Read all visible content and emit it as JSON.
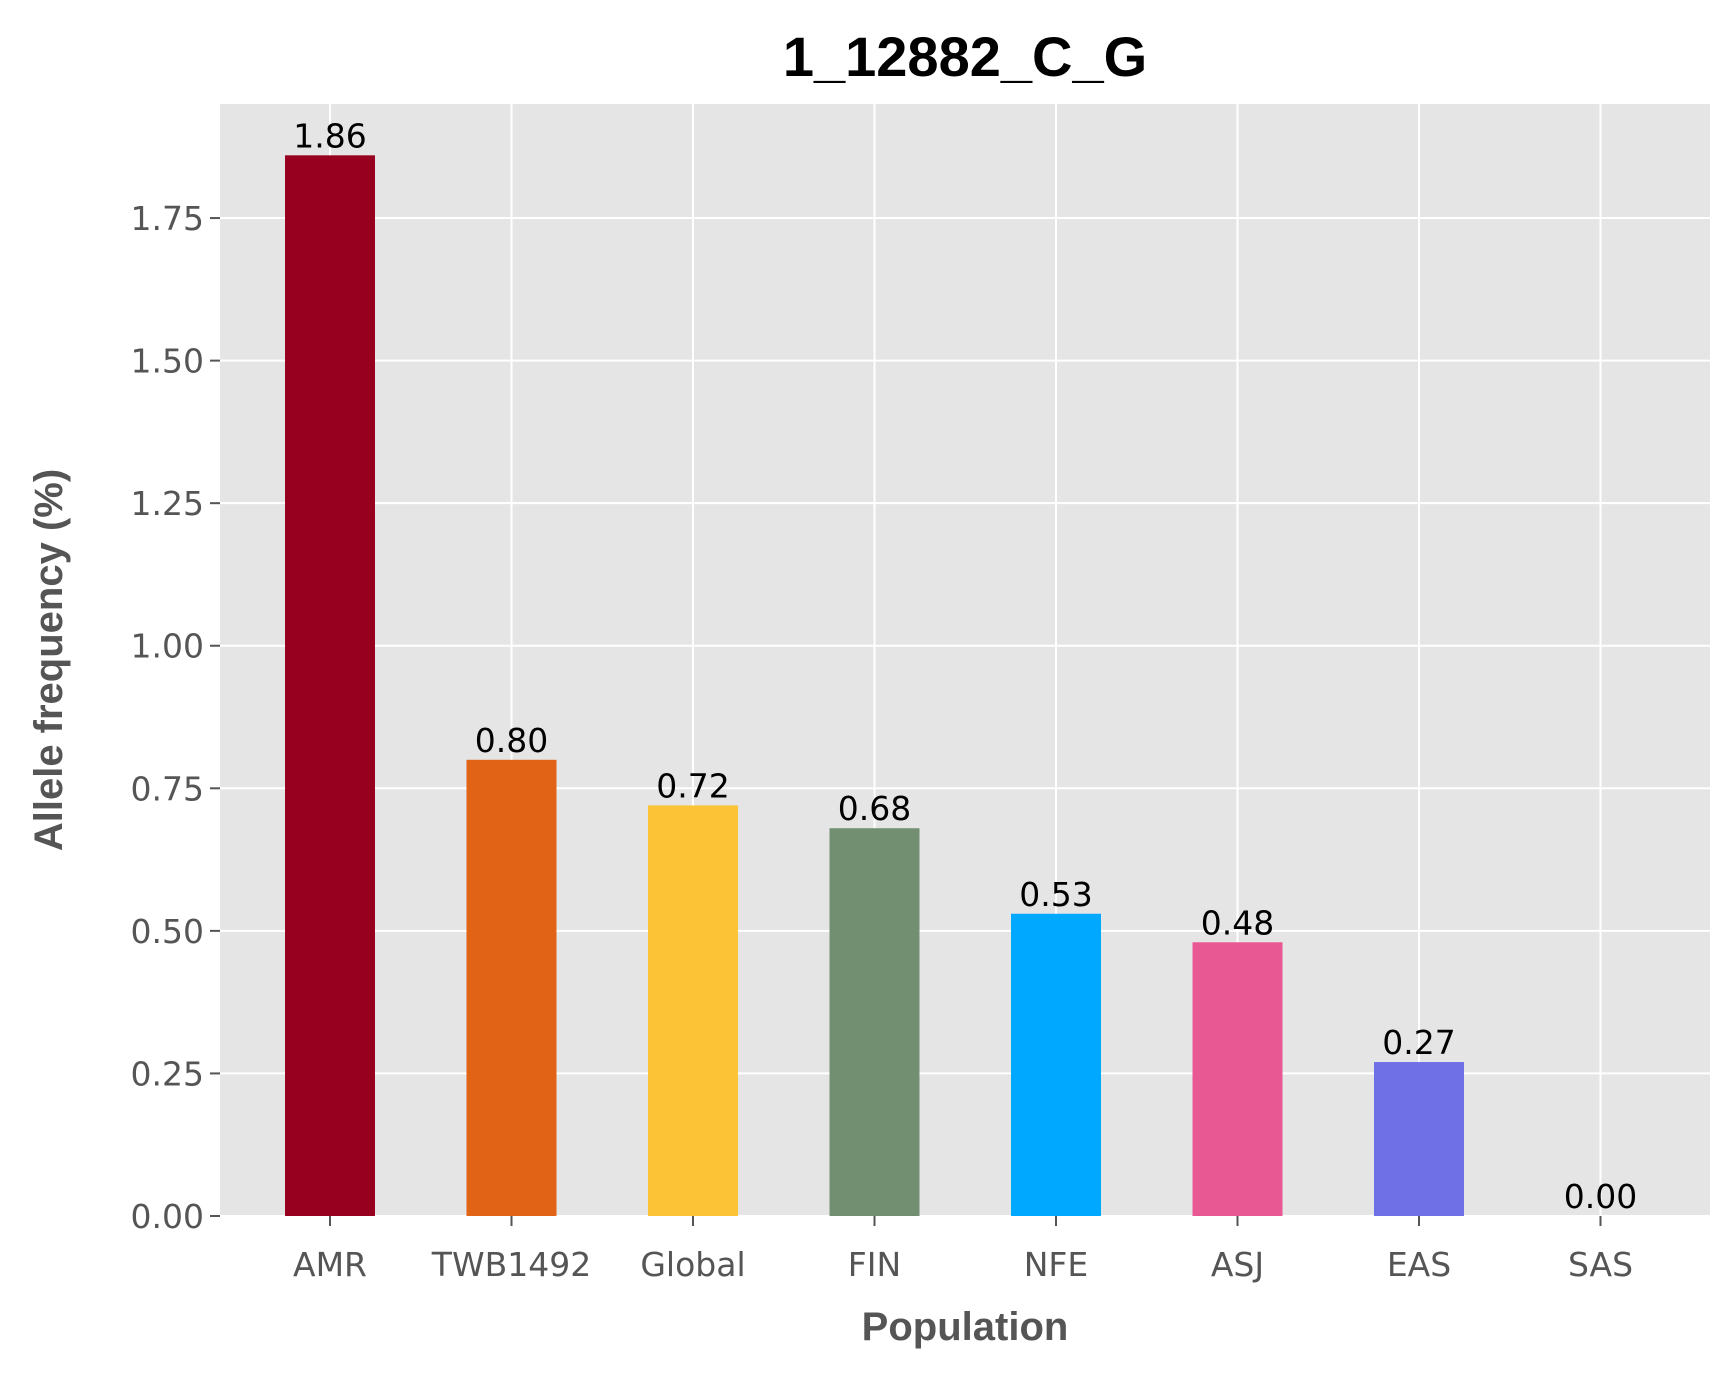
{
  "chart_data": {
    "type": "bar",
    "title": "1_12882_C_G",
    "xlabel": "Population",
    "ylabel": "Allele frequency (%)",
    "categories": [
      "AMR",
      "TWB1492",
      "Global",
      "FIN",
      "NFE",
      "ASJ",
      "EAS",
      "SAS"
    ],
    "values": [
      1.86,
      0.8,
      0.72,
      0.68,
      0.53,
      0.48,
      0.27,
      0.0
    ],
    "data_labels": [
      "1.86",
      "0.80",
      "0.72",
      "0.68",
      "0.53",
      "0.48",
      "0.27",
      "0.00"
    ],
    "colors": [
      "#98001f",
      "#e06316",
      "#fdc336",
      "#738f72",
      "#00a8ff",
      "#e85892",
      "#7070e6",
      "#6a5acd"
    ],
    "ylim": [
      0,
      1.95
    ],
    "yticks": [
      0,
      0.25,
      0.5,
      0.75,
      1.0,
      1.25,
      1.5,
      1.75
    ],
    "ytick_labels": [
      "0.00",
      "0.25",
      "0.50",
      "0.75",
      "1.00",
      "1.25",
      "1.50",
      "1.75"
    ],
    "grid": true,
    "background": "#e5e5e5"
  }
}
